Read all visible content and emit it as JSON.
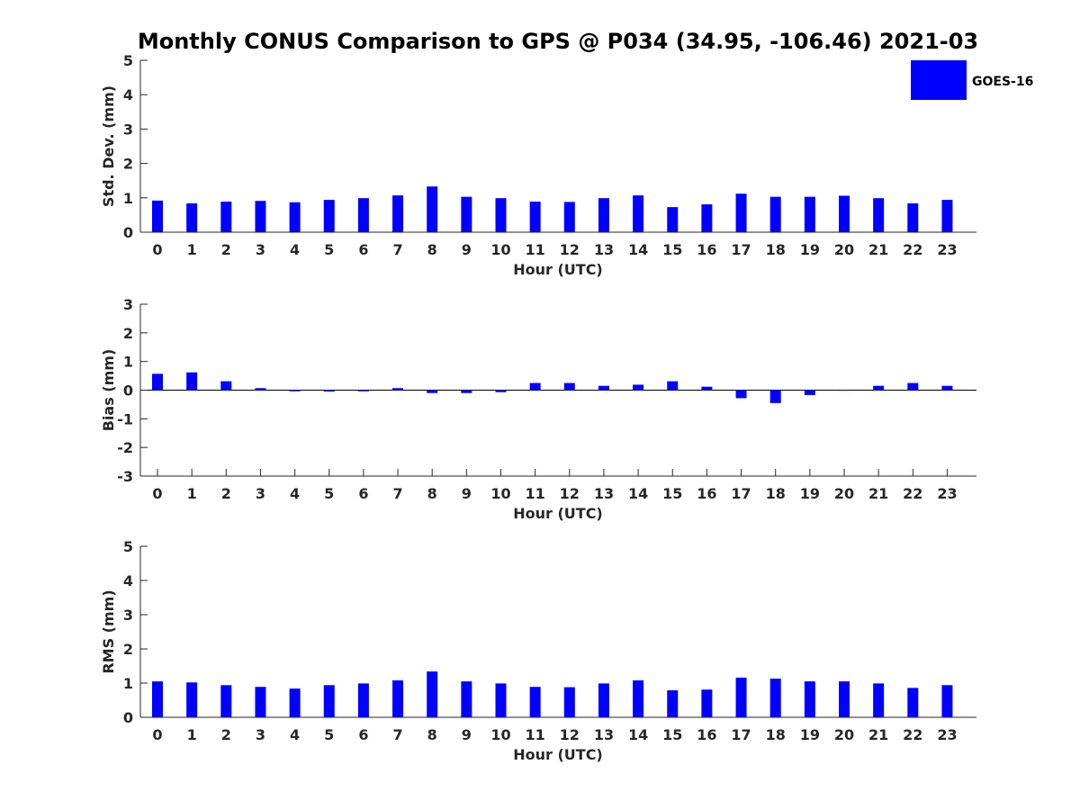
{
  "figure": {
    "title": "Monthly CONUS Comparison to GPS @ P034 (34.95, -106.46) 2021-03",
    "bar_color": "#0000ff",
    "legend": {
      "label": "GOES-16",
      "position": "top-right"
    }
  },
  "chart_data": [
    {
      "type": "bar",
      "name": "std-dev",
      "series_name": "GOES-16",
      "categories": [
        "0",
        "1",
        "2",
        "3",
        "4",
        "5",
        "6",
        "7",
        "8",
        "9",
        "10",
        "11",
        "12",
        "13",
        "14",
        "15",
        "16",
        "17",
        "18",
        "19",
        "20",
        "21",
        "22",
        "23"
      ],
      "values": [
        0.92,
        0.84,
        0.89,
        0.91,
        0.87,
        0.94,
        0.99,
        1.07,
        1.33,
        1.03,
        0.99,
        0.89,
        0.88,
        0.99,
        1.07,
        0.73,
        0.81,
        1.12,
        1.03,
        1.03,
        1.06,
        0.99,
        0.84,
        0.94
      ],
      "xlabel": "Hour (UTC)",
      "ylabel": "Std. Dev. (mm)",
      "ylim": [
        0,
        5
      ],
      "yticks": [
        "0",
        "1",
        "2",
        "3",
        "4",
        "5"
      ]
    },
    {
      "type": "bar",
      "name": "bias",
      "series_name": "GOES-16",
      "categories": [
        "0",
        "1",
        "2",
        "3",
        "4",
        "5",
        "6",
        "7",
        "8",
        "9",
        "10",
        "11",
        "12",
        "13",
        "14",
        "15",
        "16",
        "17",
        "18",
        "19",
        "20",
        "21",
        "22",
        "23"
      ],
      "values": [
        0.57,
        0.62,
        0.31,
        0.07,
        -0.04,
        -0.05,
        -0.04,
        0.07,
        -0.1,
        -0.1,
        -0.07,
        0.25,
        0.25,
        0.15,
        0.19,
        0.31,
        0.12,
        -0.28,
        -0.45,
        -0.17,
        0.0,
        0.15,
        0.25,
        0.15
      ],
      "xlabel": "Hour (UTC)",
      "ylabel": "Bias (mm)",
      "ylim": [
        -3,
        3
      ],
      "yticks": [
        "-3",
        "-2",
        "-1",
        "0",
        "1",
        "2",
        "3"
      ],
      "zero_line": true
    },
    {
      "type": "bar",
      "name": "rms",
      "series_name": "GOES-16",
      "categories": [
        "0",
        "1",
        "2",
        "3",
        "4",
        "5",
        "6",
        "7",
        "8",
        "9",
        "10",
        "11",
        "12",
        "13",
        "14",
        "15",
        "16",
        "17",
        "18",
        "19",
        "20",
        "21",
        "22",
        "23"
      ],
      "values": [
        1.05,
        1.02,
        0.94,
        0.89,
        0.84,
        0.94,
        0.99,
        1.08,
        1.34,
        1.05,
        0.99,
        0.89,
        0.88,
        0.99,
        1.08,
        0.79,
        0.81,
        1.16,
        1.13,
        1.05,
        1.05,
        0.99,
        0.86,
        0.94
      ],
      "xlabel": "Hour (UTC)",
      "ylabel": "RMS (mm)",
      "ylim": [
        0,
        5
      ],
      "yticks": [
        "0",
        "1",
        "2",
        "3",
        "4",
        "5"
      ]
    }
  ]
}
